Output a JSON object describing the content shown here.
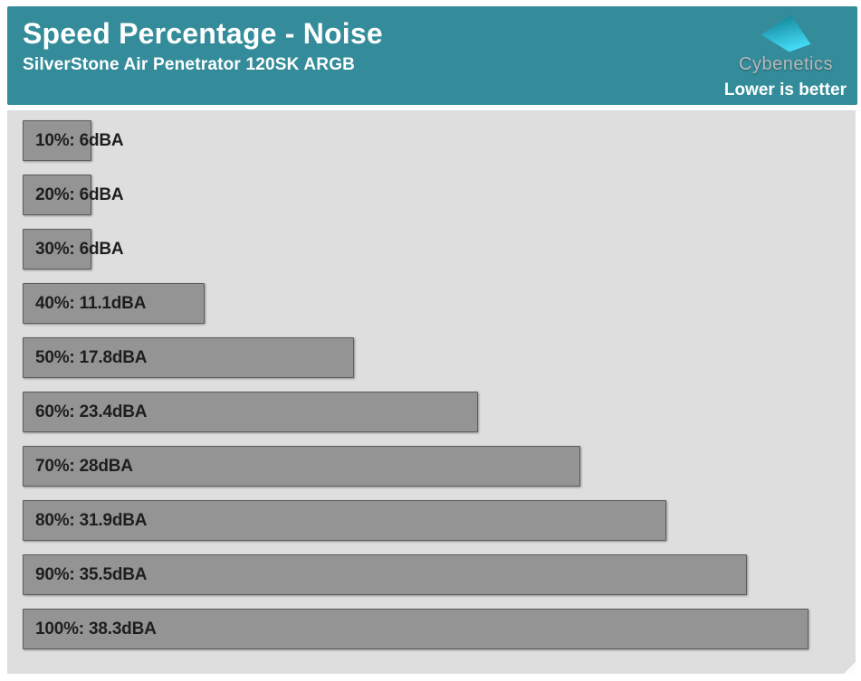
{
  "header": {
    "title": "Speed Percentage - Noise",
    "subtitle": "SilverStone Air Penetrator 120SK ARGB",
    "note": "Lower is better",
    "background_color": "#348c9b"
  },
  "logo": {
    "brand": "Cybenetics",
    "mark": "logo-parallelogram",
    "gradient_start": "#0c7d90",
    "gradient_end": "#45dcf6",
    "text_color": "#b5babb"
  },
  "chart_data": {
    "type": "bar",
    "orientation": "horizontal",
    "title": "Speed Percentage - Noise",
    "subtitle": "SilverStone Air Penetrator 120SK ARGB",
    "categories": [
      "10%",
      "20%",
      "30%",
      "40%",
      "50%",
      "60%",
      "70%",
      "80%",
      "90%",
      "100%"
    ],
    "values": [
      6,
      6,
      6,
      11.1,
      17.8,
      23.4,
      28,
      31.9,
      35.5,
      38.3
    ],
    "unit": "dBA",
    "labels": [
      "10%: 6dBA",
      "20%: 6dBA",
      "30%: 6dBA",
      "40%: 11.1dBA",
      "50%: 17.8dBA",
      "60%: 23.4dBA",
      "70%: 28dBA",
      "80%: 31.9dBA",
      "90%: 35.5dBA",
      "100%: 38.3dBA"
    ],
    "xlabel": "",
    "ylabel": "",
    "xlim": [
      2.9,
      40.4
    ],
    "grid": false,
    "legend": false,
    "annotation": "Lower is better",
    "bar_color": "#949494",
    "bar_border_color": "#5c5c5c",
    "plot_background": "#dedede",
    "label_color": "#1e1e1e"
  }
}
